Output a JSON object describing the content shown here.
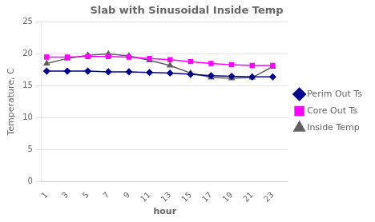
{
  "chart_data": {
    "type": "line",
    "title": "Slab with Sinusoidal Inside Temp",
    "x_label": "hour",
    "y_label": "Temperature, C",
    "x": [
      1,
      3,
      5,
      7,
      9,
      11,
      13,
      15,
      17,
      19,
      21,
      23
    ],
    "series": [
      {
        "name": "Perim Out Ts",
        "color": "#00008B",
        "marker": "diamond",
        "values": [
          17.3,
          17.3,
          17.3,
          17.2,
          17.2,
          17.1,
          17.0,
          16.8,
          16.6,
          16.5,
          16.4,
          16.4
        ]
      },
      {
        "name": "Core Out Ts",
        "color": "#FF00FF",
        "marker": "square",
        "values": [
          19.5,
          19.5,
          19.6,
          19.6,
          19.5,
          19.3,
          19.1,
          18.8,
          18.5,
          18.3,
          18.2,
          18.2
        ]
      },
      {
        "name": "Inside Temp",
        "color": "#606060",
        "marker": "triangle",
        "values": [
          18.5,
          19.3,
          19.8,
          20.0,
          19.7,
          19.0,
          18.2,
          17.0,
          16.3,
          16.2,
          16.3,
          18.0
        ]
      }
    ],
    "xlim": [
      0.5,
      24.5
    ],
    "xticks": [
      1,
      3,
      5,
      7,
      9,
      11,
      13,
      15,
      17,
      19,
      21,
      23
    ],
    "ylim": [
      0,
      25
    ],
    "yticks": [
      0,
      5,
      10,
      15,
      20,
      25
    ],
    "grid": true,
    "legend": "right"
  }
}
